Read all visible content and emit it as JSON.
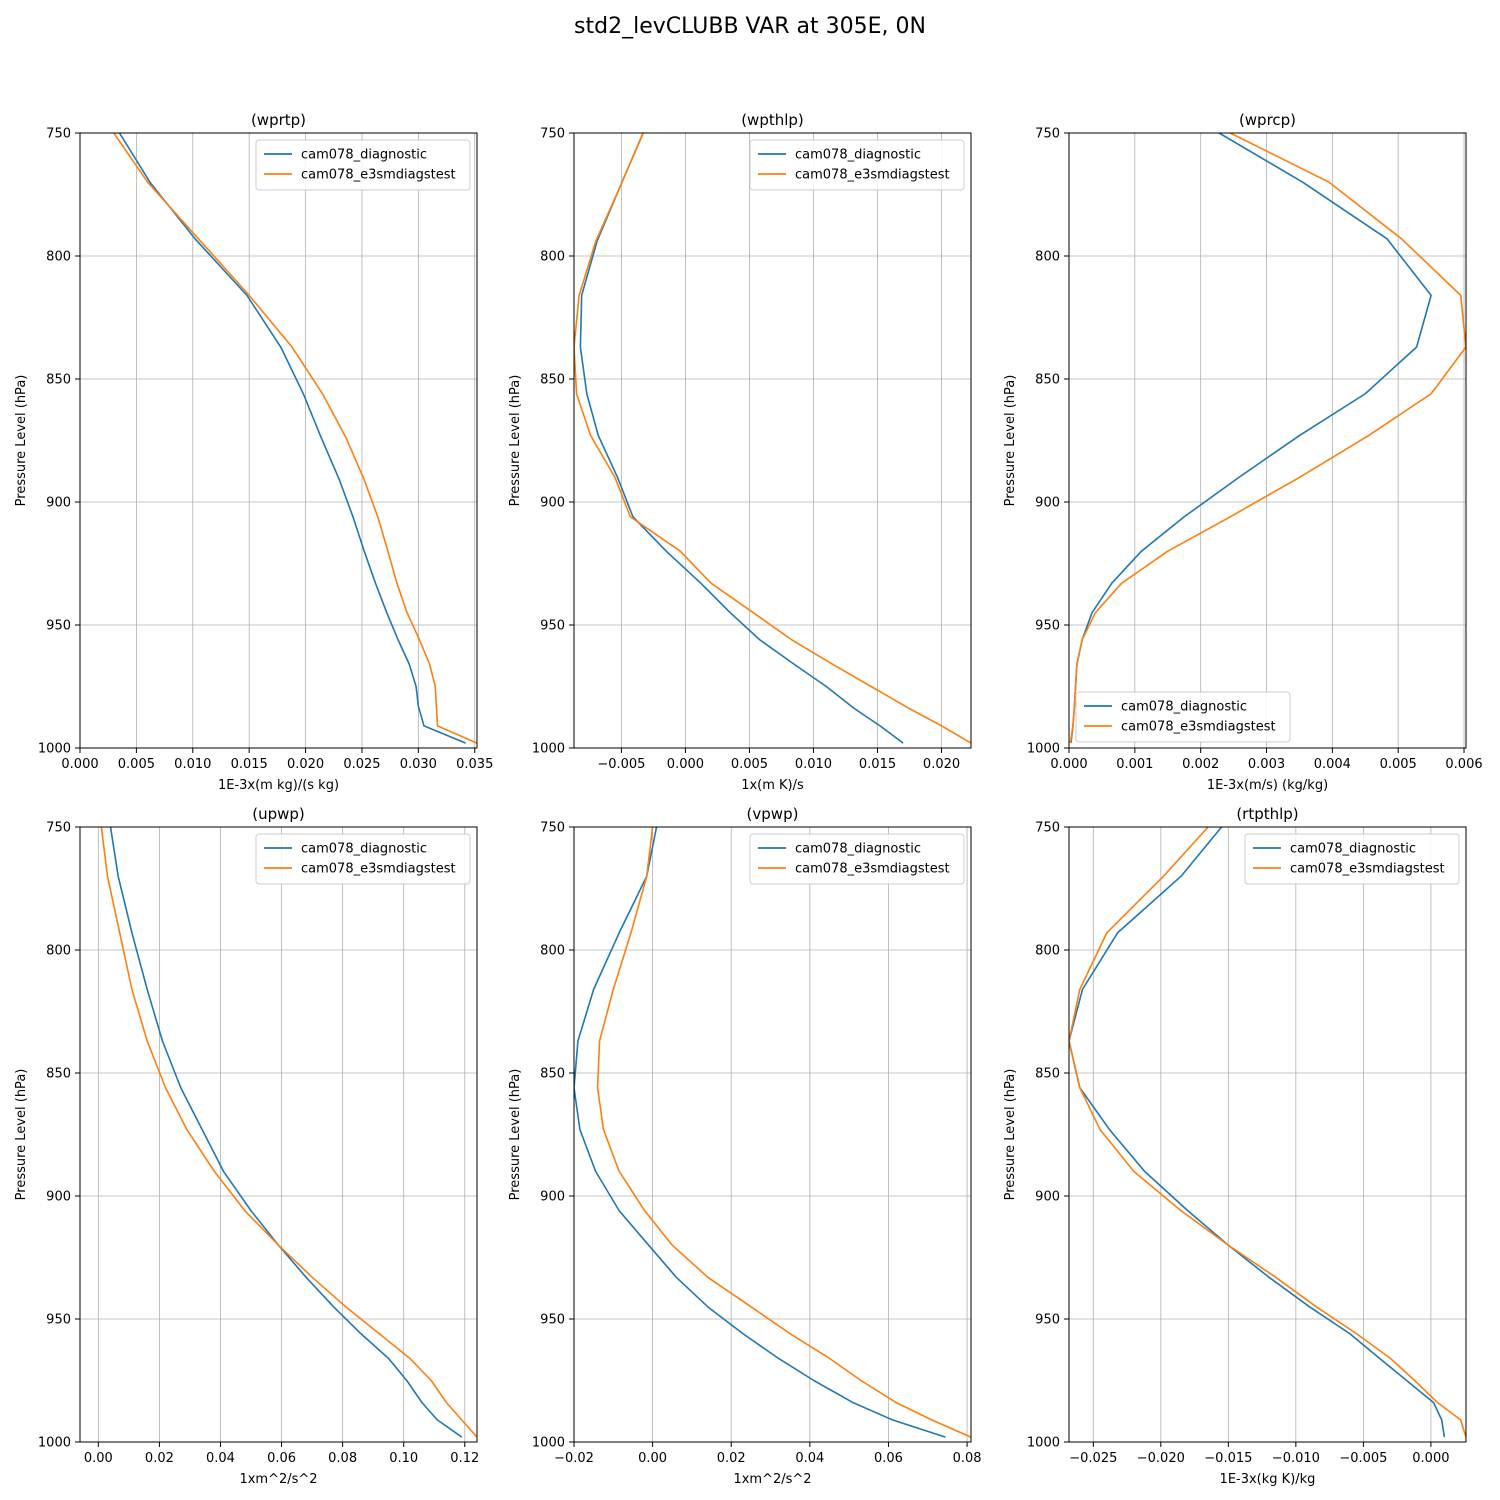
{
  "figure": {
    "title": "std2_levCLUBB VAR at 305E, 0N"
  },
  "colors": {
    "series1": "#1f77b4",
    "series2": "#ff7f0e",
    "grid": "#b0b0b0"
  },
  "chart_data": [
    {
      "type": "line",
      "title": "(wprtp)",
      "xlabel": "1E-3x(m kg)/(s kg)",
      "ylabel": "Pressure Level (hPa)",
      "xlim": [
        0,
        0.0352
      ],
      "ylim": [
        750,
        1000
      ],
      "xticks": [
        0,
        0.005,
        0.01,
        0.015,
        0.02,
        0.025,
        0.03,
        0.035
      ],
      "xtick_labels": [
        "0.000",
        "0.005",
        "0.010",
        "0.015",
        "0.020",
        "0.025",
        "0.030",
        "0.035"
      ],
      "yticks": [
        750,
        800,
        850,
        900,
        950,
        1000
      ],
      "ytick_labels": [
        "750",
        "800",
        "850",
        "900",
        "950",
        "1000"
      ],
      "legend_position": "upper-right",
      "y": [
        750,
        770,
        793,
        816,
        837,
        856,
        874,
        891,
        906,
        920,
        933,
        945,
        956,
        966,
        975,
        983,
        991,
        998
      ],
      "series": [
        {
          "name": "cam078_diagnostic",
          "values": [
            0.0035,
            0.0062,
            0.0102,
            0.0148,
            0.0178,
            0.0198,
            0.0214,
            0.023,
            0.0242,
            0.0252,
            0.0262,
            0.0272,
            0.0282,
            0.0292,
            0.0298,
            0.03,
            0.0305,
            0.0342
          ]
        },
        {
          "name": "cam078_e3smdiagstest",
          "values": [
            0.003,
            0.006,
            0.0105,
            0.015,
            0.0188,
            0.0215,
            0.0236,
            0.0252,
            0.0264,
            0.0273,
            0.0281,
            0.029,
            0.0301,
            0.031,
            0.0315,
            0.0316,
            0.0317,
            0.0352
          ]
        }
      ]
    },
    {
      "type": "line",
      "title": "(wpthlp)",
      "xlabel": "1x(m K)/s",
      "ylabel": "Pressure Level (hPa)",
      "xlim": [
        -0.0087,
        0.0223
      ],
      "ylim": [
        750,
        1000
      ],
      "xticks": [
        -0.005,
        0,
        0.005,
        0.01,
        0.015,
        0.02
      ],
      "xtick_labels": [
        "−0.005",
        "0.000",
        "0.005",
        "0.010",
        "0.015",
        "0.020"
      ],
      "yticks": [
        750,
        800,
        850,
        900,
        950,
        1000
      ],
      "ytick_labels": [
        "750",
        "800",
        "850",
        "900",
        "950",
        "1000"
      ],
      "legend_position": "upper-right",
      "y": [
        750,
        773,
        794,
        816,
        837,
        856,
        873,
        890,
        906,
        920,
        933,
        945,
        956,
        966,
        975,
        984,
        991,
        998
      ],
      "series": [
        {
          "name": "cam078_diagnostic",
          "values": [
            -0.0033,
            -0.0052,
            -0.0069,
            -0.0081,
            -0.0082,
            -0.0077,
            -0.0068,
            -0.0053,
            -0.0041,
            -0.0015,
            0.0012,
            0.0035,
            0.0058,
            0.0085,
            0.011,
            0.0132,
            0.0152,
            0.017
          ]
        },
        {
          "name": "cam078_e3smdiagstest",
          "values": [
            -0.0033,
            -0.0052,
            -0.007,
            -0.0083,
            -0.0087,
            -0.0085,
            -0.0074,
            -0.0055,
            -0.0043,
            -0.0004,
            0.002,
            0.0053,
            0.0083,
            0.0115,
            0.0145,
            0.0175,
            0.02,
            0.0223
          ]
        }
      ]
    },
    {
      "type": "line",
      "title": "(wprcp)",
      "xlabel": "1E-3x(m/s) (kg/kg)",
      "ylabel": "Pressure Level (hPa)",
      "xlim": [
        0,
        0.00603
      ],
      "ylim": [
        750,
        1000
      ],
      "xticks": [
        0,
        0.001,
        0.002,
        0.003,
        0.004,
        0.005,
        0.006
      ],
      "xtick_labels": [
        "0.000",
        "0.001",
        "0.002",
        "0.003",
        "0.004",
        "0.005",
        "0.006"
      ],
      "yticks": [
        750,
        800,
        850,
        900,
        950,
        1000
      ],
      "ytick_labels": [
        "750",
        "800",
        "850",
        "900",
        "950",
        "1000"
      ],
      "legend_position": "lower-left",
      "y": [
        750,
        770,
        793,
        816,
        837,
        856,
        873,
        890,
        906,
        920,
        933,
        945,
        956,
        966,
        975,
        984,
        991,
        998
      ],
      "series": [
        {
          "name": "cam078_diagnostic",
          "values": [
            0.00228,
            0.00355,
            0.00483,
            0.0055,
            0.00528,
            0.0045,
            0.0035,
            0.00258,
            0.00175,
            0.0011,
            0.00065,
            0.00035,
            0.0002,
            0.00012,
            0.0001,
            8e-05,
            6e-05,
            3e-05
          ]
        },
        {
          "name": "cam078_e3smdiagstest",
          "values": [
            0.00245,
            0.00395,
            0.00505,
            0.00595,
            0.00603,
            0.0055,
            0.00455,
            0.0035,
            0.00245,
            0.0015,
            0.0008,
            0.0004,
            0.0002,
            0.00012,
            0.0001,
            8e-05,
            6e-05,
            2e-05
          ]
        }
      ]
    },
    {
      "type": "line",
      "title": "(upwp)",
      "xlabel": "1xm^2/s^2",
      "ylabel": "Pressure Level (hPa)",
      "xlim": [
        -0.006,
        0.124
      ],
      "ylim": [
        750,
        1000
      ],
      "xticks": [
        0,
        0.02,
        0.04,
        0.06,
        0.08,
        0.1,
        0.12
      ],
      "xtick_labels": [
        "0.00",
        "0.02",
        "0.04",
        "0.06",
        "0.08",
        "0.10",
        "0.12"
      ],
      "yticks": [
        750,
        800,
        850,
        900,
        950,
        1000
      ],
      "ytick_labels": [
        "750",
        "800",
        "850",
        "900",
        "950",
        "1000"
      ],
      "legend_position": "upper-right",
      "y": [
        750,
        770,
        793,
        816,
        837,
        856,
        873,
        890,
        906,
        920,
        933,
        945,
        956,
        966,
        975,
        984,
        991,
        998
      ],
      "series": [
        {
          "name": "cam078_diagnostic",
          "values": [
            0.004,
            0.0065,
            0.011,
            0.016,
            0.021,
            0.027,
            0.034,
            0.041,
            0.05,
            0.059,
            0.068,
            0.077,
            0.086,
            0.095,
            0.101,
            0.106,
            0.111,
            0.119
          ]
        },
        {
          "name": "cam078_e3smdiagstest",
          "values": [
            0.001,
            0.003,
            0.007,
            0.011,
            0.016,
            0.022,
            0.029,
            0.038,
            0.048,
            0.059,
            0.07,
            0.081,
            0.092,
            0.102,
            0.109,
            0.114,
            0.119,
            0.124
          ]
        }
      ]
    },
    {
      "type": "line",
      "title": "(vpwp)",
      "xlabel": "1xm^2/s^2",
      "ylabel": "Pressure Level (hPa)",
      "xlim": [
        -0.02,
        0.081
      ],
      "ylim": [
        750,
        1000
      ],
      "xticks": [
        -0.02,
        0,
        0.02,
        0.04,
        0.06,
        0.08
      ],
      "xtick_labels": [
        "−0.02",
        "0.00",
        "0.02",
        "0.04",
        "0.06",
        "0.08"
      ],
      "yticks": [
        750,
        800,
        850,
        900,
        950,
        1000
      ],
      "ytick_labels": [
        "750",
        "800",
        "850",
        "900",
        "950",
        "1000"
      ],
      "legend_position": "upper-right",
      "y": [
        750,
        770,
        793,
        816,
        837,
        856,
        873,
        890,
        906,
        920,
        933,
        945,
        956,
        966,
        975,
        984,
        991,
        998
      ],
      "series": [
        {
          "name": "cam078_diagnostic",
          "values": [
            0.001,
            -0.0015,
            -0.0085,
            -0.015,
            -0.019,
            -0.02,
            -0.0185,
            -0.0145,
            -0.0085,
            -0.001,
            0.006,
            0.014,
            0.023,
            0.032,
            0.041,
            0.051,
            0.061,
            0.0745
          ]
        },
        {
          "name": "cam078_e3smdiagstest",
          "values": [
            0.0,
            -0.0015,
            -0.0055,
            -0.01,
            -0.0135,
            -0.014,
            -0.0125,
            -0.0085,
            -0.002,
            0.005,
            0.014,
            0.025,
            0.035,
            0.045,
            0.053,
            0.062,
            0.071,
            0.081
          ]
        }
      ]
    },
    {
      "type": "line",
      "title": "(rtpthlp)",
      "xlabel": "1E-3x(kg K)/kg",
      "ylabel": "Pressure Level (hPa)",
      "xlim": [
        -0.0268,
        0.0026
      ],
      "ylim": [
        750,
        1000
      ],
      "xticks": [
        -0.025,
        -0.02,
        -0.015,
        -0.01,
        -0.005,
        0
      ],
      "xtick_labels": [
        "−0.025",
        "−0.020",
        "−0.015",
        "−0.010",
        "−0.005",
        "0.000"
      ],
      "yticks": [
        750,
        800,
        850,
        900,
        950,
        1000
      ],
      "ytick_labels": [
        "750",
        "800",
        "850",
        "900",
        "950",
        "1000"
      ],
      "legend_position": "upper-right",
      "y": [
        750,
        770,
        793,
        816,
        837,
        856,
        873,
        890,
        906,
        920,
        933,
        945,
        956,
        966,
        975,
        984,
        991,
        998
      ],
      "series": [
        {
          "name": "cam078_diagnostic",
          "values": [
            -0.0155,
            -0.0185,
            -0.0232,
            -0.0258,
            -0.0268,
            -0.026,
            -0.0238,
            -0.0212,
            -0.018,
            -0.015,
            -0.012,
            -0.009,
            -0.006,
            -0.0038,
            -0.0018,
            0.0002,
            0.0008,
            0.001
          ]
        },
        {
          "name": "cam078_e3smdiagstest",
          "values": [
            -0.0165,
            -0.0198,
            -0.024,
            -0.026,
            -0.0268,
            -0.026,
            -0.0245,
            -0.022,
            -0.0185,
            -0.015,
            -0.0115,
            -0.0085,
            -0.0055,
            -0.003,
            -0.0012,
            0.0005,
            0.0022,
            0.0026
          ]
        }
      ]
    }
  ]
}
